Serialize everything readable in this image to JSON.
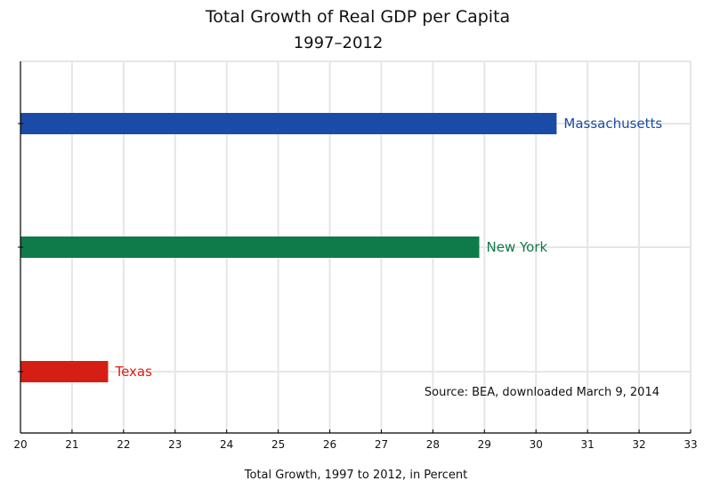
{
  "chart_data": {
    "type": "bar",
    "orientation": "horizontal",
    "title": "Total Growth of Real GDP per Capita",
    "subtitle": "1997–2012",
    "xlabel": "Total Growth, 1997 to 2012, in Percent",
    "ylabel": "",
    "xlim": [
      20,
      33
    ],
    "xticks": [
      20,
      21,
      22,
      23,
      24,
      25,
      26,
      27,
      28,
      29,
      30,
      31,
      32,
      33
    ],
    "grid": true,
    "categories": [
      "Massachusetts",
      "New York",
      "Texas"
    ],
    "values": [
      30.4,
      28.9,
      21.7
    ],
    "colors": [
      "#1a4ba6",
      "#0f7a4a",
      "#d61f14"
    ],
    "annotation": "Source:  BEA, downloaded March 9, 2014",
    "legend": "none (bars labeled directly)"
  }
}
